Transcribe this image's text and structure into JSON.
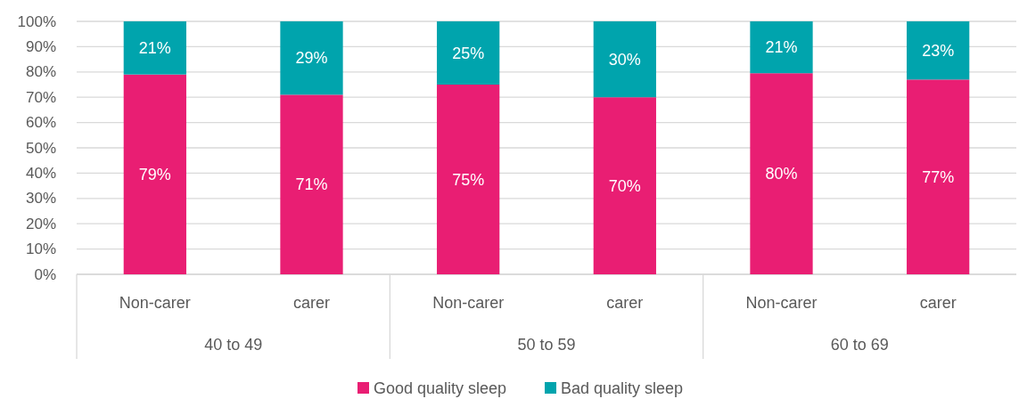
{
  "chart_data": {
    "type": "bar",
    "stacked": true,
    "categories": [
      "Non-carer",
      "carer",
      "Non-carer",
      "carer",
      "Non-carer",
      "carer"
    ],
    "annotations": [
      "40 to 49",
      "50 to 59",
      "60 to 69"
    ],
    "series": [
      {
        "name": "Good quality sleep",
        "color": "#e91e73",
        "values": [
          79,
          71,
          75,
          70,
          79.5,
          77
        ],
        "value_labels": [
          "79%",
          "71%",
          "75%",
          "70%",
          "80%",
          "77%"
        ]
      },
      {
        "name": "Bad quality sleep",
        "color": "#00a4ad",
        "values": [
          21,
          29,
          25,
          30,
          20.5,
          23
        ],
        "value_labels": [
          "21%",
          "29%",
          "25%",
          "30%",
          "21%",
          "23%"
        ]
      }
    ],
    "ylim": [
      0,
      100
    ],
    "yticks": [
      {
        "value": 0,
        "label": "0%"
      },
      {
        "value": 10,
        "label": "10%"
      },
      {
        "value": 20,
        "label": "20%"
      },
      {
        "value": 30,
        "label": "30%"
      },
      {
        "value": 40,
        "label": "40%"
      },
      {
        "value": 50,
        "label": "50%"
      },
      {
        "value": 60,
        "label": "60%"
      },
      {
        "value": 70,
        "label": "70%"
      },
      {
        "value": 80,
        "label": "80%"
      },
      {
        "value": 90,
        "label": "90%"
      },
      {
        "value": 100,
        "label": "100%"
      }
    ],
    "grid": "y",
    "legend": "bottom"
  }
}
